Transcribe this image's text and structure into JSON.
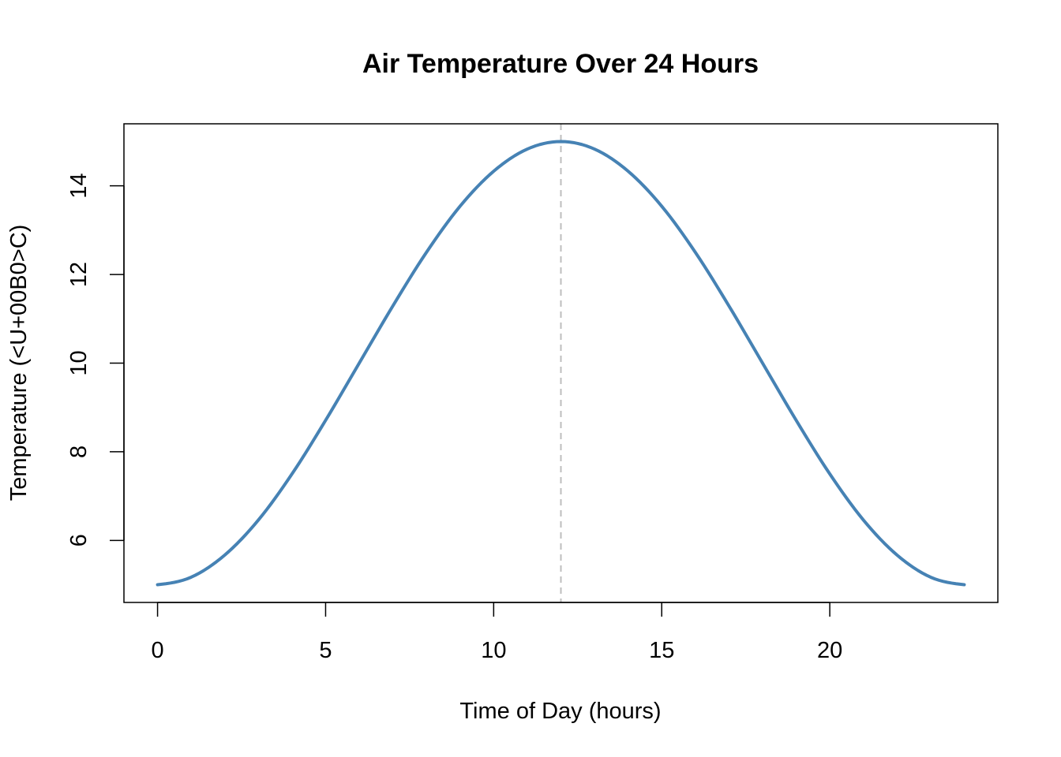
{
  "chart_data": {
    "type": "line",
    "title": "Air Temperature Over 24 Hours",
    "xlabel": "Time of Day (hours)",
    "ylabel": "Temperature (<U+00B0>C)",
    "xlim": [
      -1,
      25
    ],
    "ylim": [
      4.6,
      15.4
    ],
    "x_ticks": [
      0,
      5,
      10,
      15,
      20
    ],
    "y_ticks": [
      6,
      8,
      10,
      12,
      14
    ],
    "x_tick_labels": [
      "0",
      "5",
      "10",
      "15",
      "20"
    ],
    "y_tick_labels": [
      "6",
      "8",
      "10",
      "12",
      "14"
    ],
    "grid": false,
    "legend": "none",
    "series": [
      {
        "color": "#4682B4",
        "x": [
          0,
          1,
          2,
          3,
          4,
          5,
          6,
          7,
          8,
          9,
          10,
          11,
          12,
          13,
          14,
          15,
          16,
          17,
          18,
          19,
          20,
          21,
          22,
          23,
          24
        ],
        "y": [
          5.0,
          5.17,
          5.67,
          6.46,
          7.5,
          8.71,
          10.0,
          11.29,
          12.5,
          13.54,
          14.33,
          14.83,
          15.0,
          14.83,
          14.33,
          13.54,
          12.5,
          11.29,
          10.0,
          8.71,
          7.5,
          6.46,
          5.67,
          5.17,
          5.0
        ]
      }
    ],
    "vline": {
      "x": 12,
      "color": "#BEBEBE",
      "style": "dashed"
    }
  }
}
